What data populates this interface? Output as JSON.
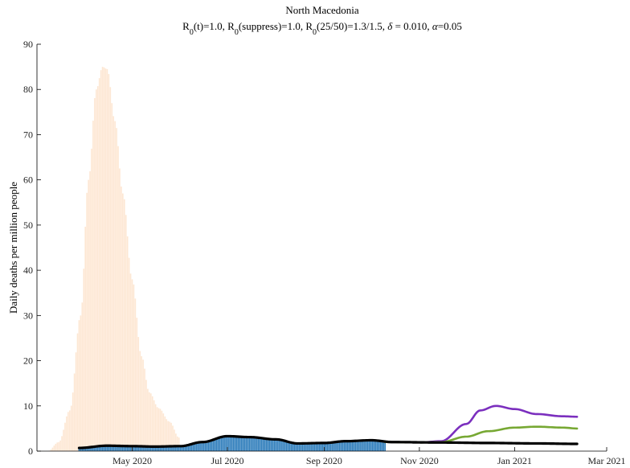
{
  "chart_data": {
    "type": "bar",
    "title": "North Macedonia",
    "subtitle": {
      "r0t": "1.0",
      "r0s": "1.0",
      "r0c": "1.3/1.5",
      "delta": "0.010",
      "alpha": "0.05"
    },
    "ylabel": "Daily deaths per million people",
    "xlabel": "",
    "ylim": [
      0,
      90
    ],
    "xlim": [
      "2020-03-01",
      "2021-03-01"
    ],
    "yticks": [
      0,
      10,
      20,
      30,
      40,
      50,
      60,
      70,
      80,
      90
    ],
    "xticks": [
      {
        "date": "2020-05-01",
        "label": "May 2020"
      },
      {
        "date": "2020-07-01",
        "label": "Jul 2020"
      },
      {
        "date": "2020-09-01",
        "label": "Sep 2020"
      },
      {
        "date": "2020-11-01",
        "label": "Nov 2020"
      },
      {
        "date": "2021-01-01",
        "label": "Jan 2021"
      },
      {
        "date": "2021-03-01",
        "label": "Mar 2021"
      }
    ],
    "grid": false,
    "legend": "none",
    "series": [
      {
        "kind": "bars",
        "color": "#fde7d3",
        "start": "2020-03-08",
        "end": "2020-05-31",
        "points": [
          [
            "2020-03-08",
            0
          ],
          [
            "2020-03-15",
            2
          ],
          [
            "2020-03-22",
            9
          ],
          [
            "2020-03-29",
            30
          ],
          [
            "2020-04-03",
            60
          ],
          [
            "2020-04-08",
            80
          ],
          [
            "2020-04-12",
            85
          ],
          [
            "2020-04-15",
            84.5
          ],
          [
            "2020-04-20",
            73
          ],
          [
            "2020-04-25",
            57
          ],
          [
            "2020-05-01",
            38
          ],
          [
            "2020-05-07",
            21
          ],
          [
            "2020-05-12",
            13
          ],
          [
            "2020-05-18",
            9.5
          ],
          [
            "2020-05-25",
            6.5
          ],
          [
            "2020-05-31",
            3
          ]
        ]
      },
      {
        "kind": "bars",
        "color": "#2b7bba",
        "start": "2020-03-28",
        "end": "2020-10-10",
        "points": [
          [
            "2020-03-28",
            0.7
          ],
          [
            "2020-04-15",
            1.2
          ],
          [
            "2020-05-01",
            1.1
          ],
          [
            "2020-05-15",
            1.2
          ],
          [
            "2020-06-01",
            1.1
          ],
          [
            "2020-06-15",
            2.0
          ],
          [
            "2020-07-01",
            3.5
          ],
          [
            "2020-07-15",
            3.2
          ],
          [
            "2020-08-01",
            2.6
          ],
          [
            "2020-08-15",
            1.7
          ],
          [
            "2020-09-01",
            1.9
          ],
          [
            "2020-09-15",
            2.2
          ],
          [
            "2020-10-01",
            2.4
          ],
          [
            "2020-10-10",
            2.2
          ]
        ]
      },
      {
        "kind": "line",
        "color": "#7b2fbe",
        "points": [
          [
            "2020-10-10",
            2.0
          ],
          [
            "2020-11-01",
            1.9
          ],
          [
            "2020-11-15",
            2.2
          ],
          [
            "2020-12-01",
            6.0
          ],
          [
            "2020-12-10",
            9.0
          ],
          [
            "2020-12-20",
            10.0
          ],
          [
            "2021-01-01",
            9.3
          ],
          [
            "2021-01-15",
            8.2
          ],
          [
            "2021-02-01",
            7.7
          ],
          [
            "2021-02-10",
            7.6
          ]
        ]
      },
      {
        "kind": "line",
        "color": "#77a833",
        "points": [
          [
            "2020-10-10",
            2.0
          ],
          [
            "2020-11-01",
            1.9
          ],
          [
            "2020-11-15",
            2.0
          ],
          [
            "2020-12-01",
            3.2
          ],
          [
            "2020-12-15",
            4.4
          ],
          [
            "2021-01-01",
            5.2
          ],
          [
            "2021-01-15",
            5.4
          ],
          [
            "2021-02-01",
            5.2
          ],
          [
            "2021-02-10",
            5.0
          ]
        ]
      },
      {
        "kind": "line",
        "color": "#000000",
        "points": [
          [
            "2020-03-28",
            0.7
          ],
          [
            "2020-04-15",
            1.2
          ],
          [
            "2020-05-01",
            1.1
          ],
          [
            "2020-05-15",
            1.0
          ],
          [
            "2020-06-01",
            1.1
          ],
          [
            "2020-06-15",
            2.0
          ],
          [
            "2020-07-01",
            3.3
          ],
          [
            "2020-07-15",
            3.1
          ],
          [
            "2020-08-01",
            2.6
          ],
          [
            "2020-08-15",
            1.7
          ],
          [
            "2020-09-01",
            1.8
          ],
          [
            "2020-09-15",
            2.2
          ],
          [
            "2020-10-01",
            2.4
          ],
          [
            "2020-10-15",
            2.0
          ],
          [
            "2020-11-15",
            1.9
          ],
          [
            "2020-12-15",
            1.8
          ],
          [
            "2021-01-15",
            1.7
          ],
          [
            "2021-02-10",
            1.6
          ]
        ]
      }
    ]
  }
}
